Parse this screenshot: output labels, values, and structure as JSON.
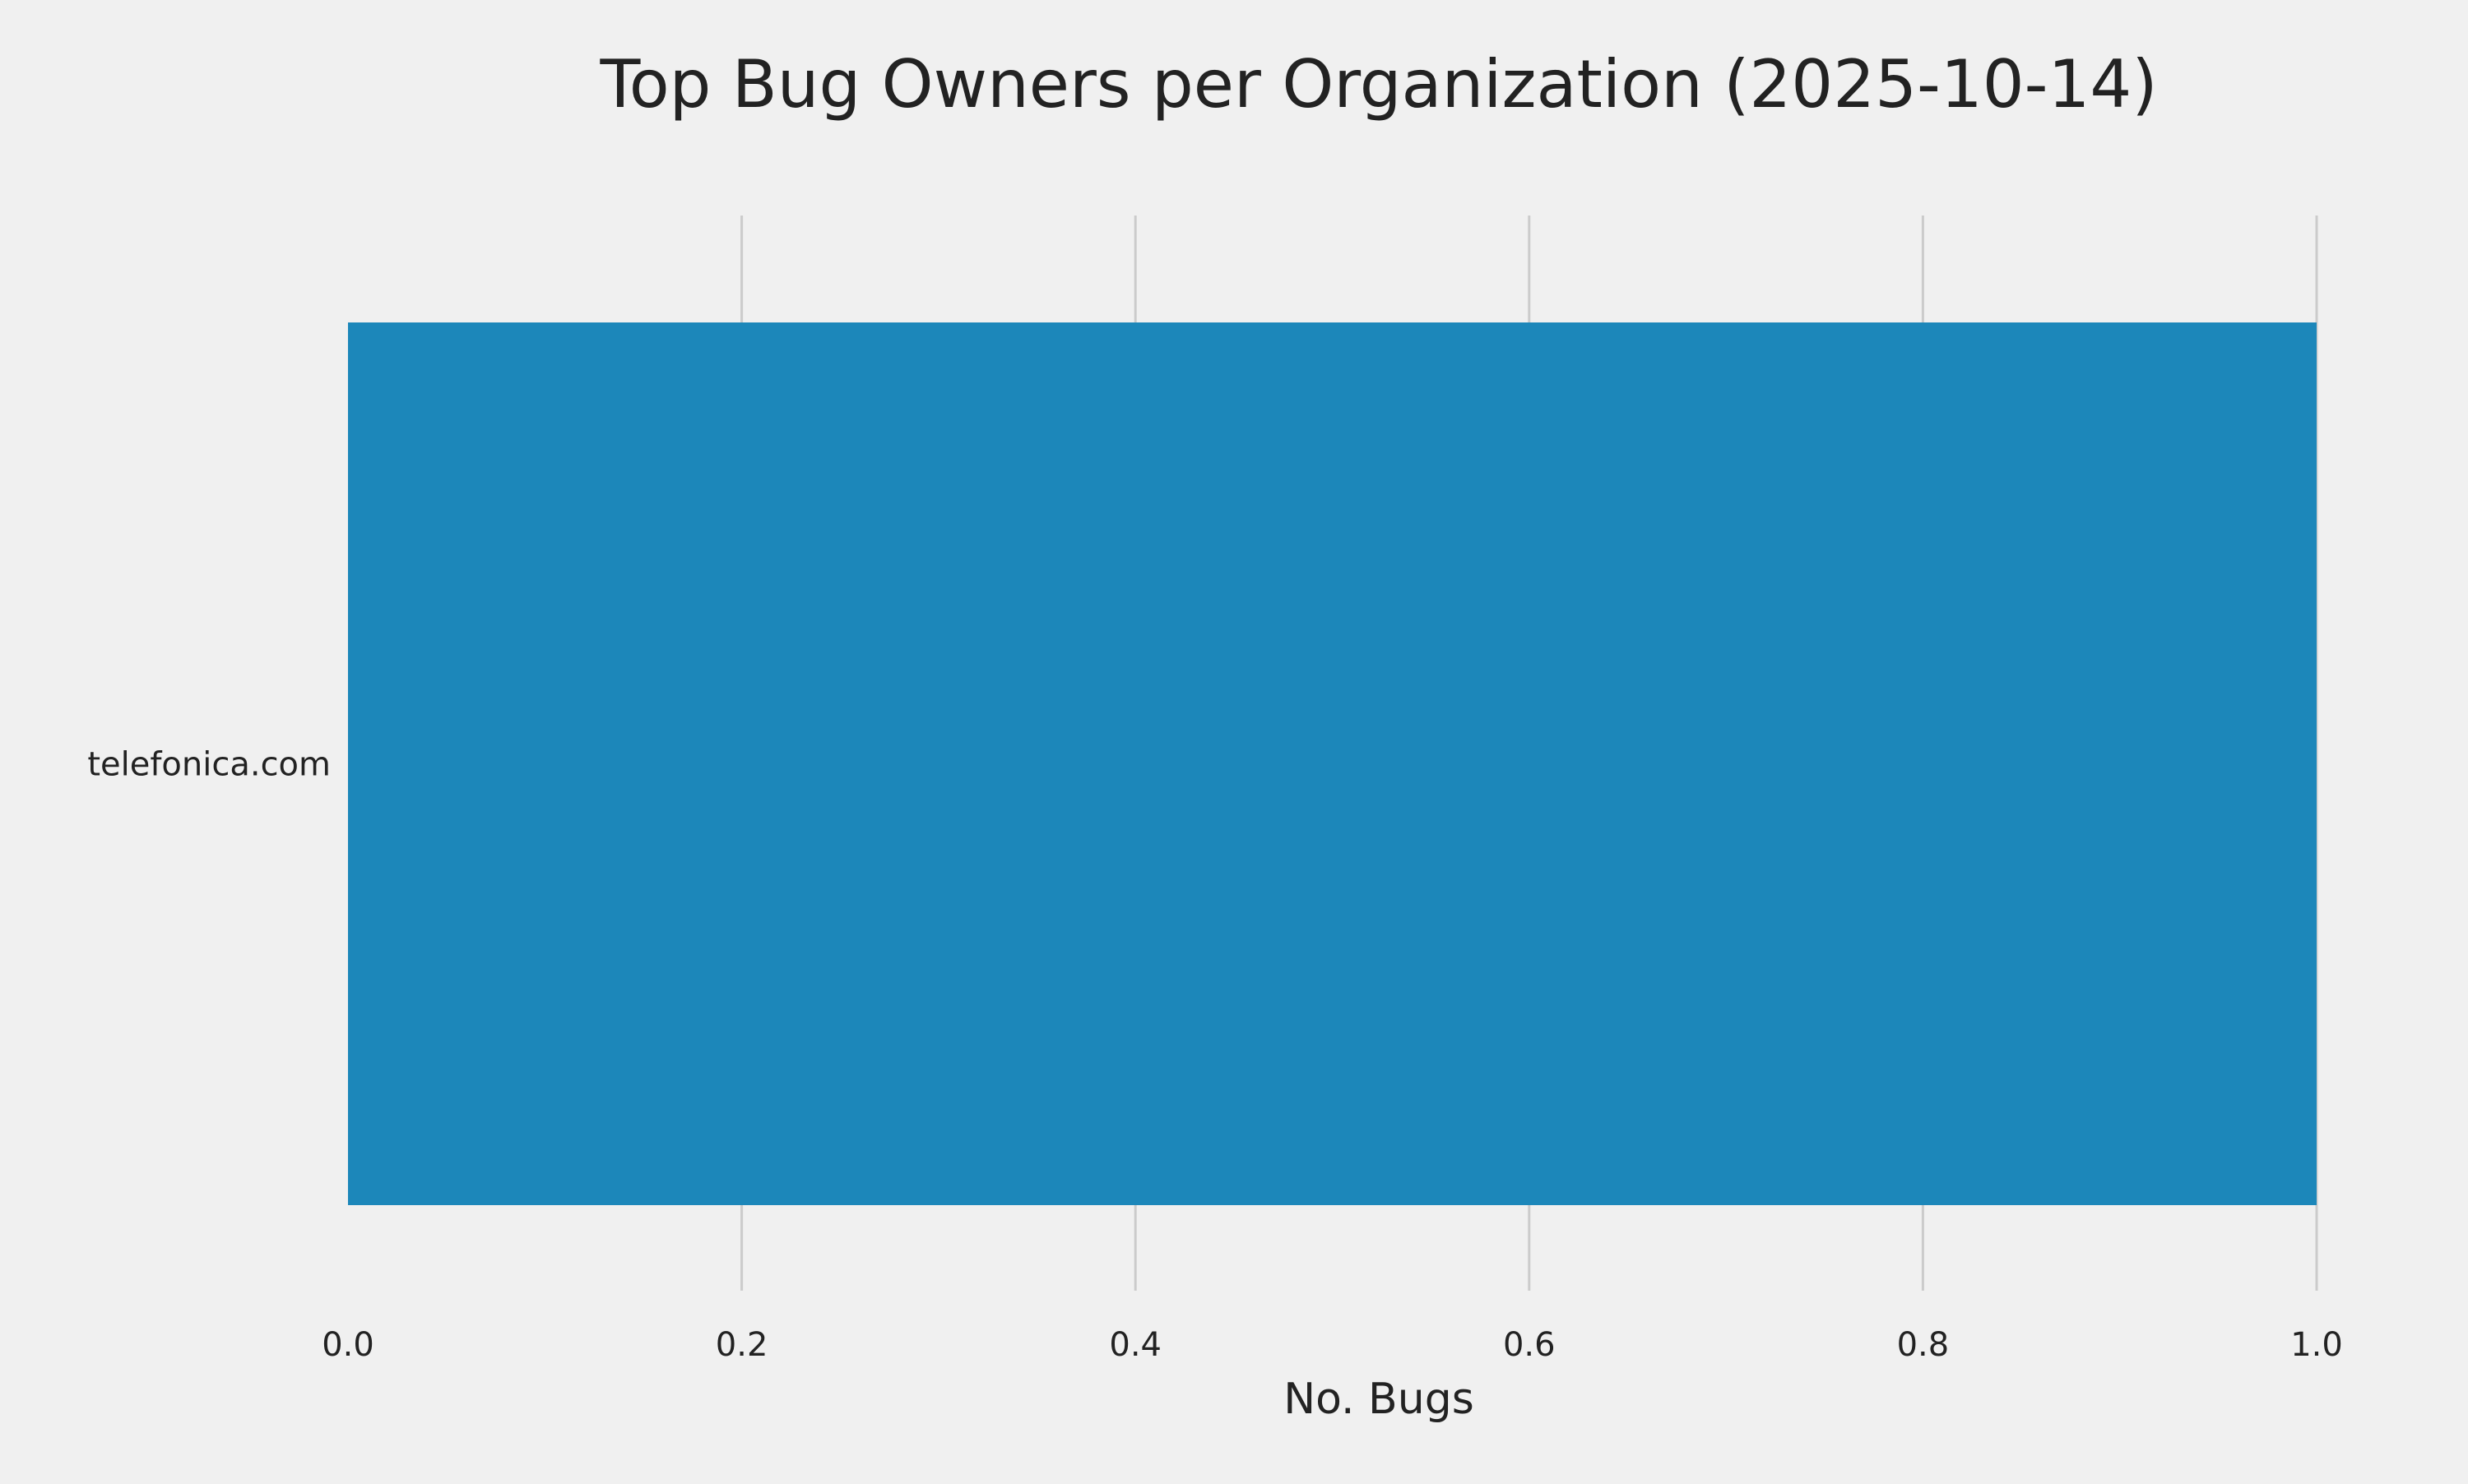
{
  "chart_data": {
    "type": "bar",
    "orientation": "horizontal",
    "title": "Top Bug Owners per Organization (2025-10-14)",
    "xlabel": "No. Bugs",
    "ylabel": "",
    "categories": [
      "telefonica.com"
    ],
    "values": [
      1
    ],
    "xlim": [
      0,
      1.0
    ],
    "xticks": [
      "0.0",
      "0.2",
      "0.4",
      "0.6",
      "0.8",
      "1.0"
    ],
    "grid": "vertical",
    "colors": {
      "bar": "#1c87ba",
      "background": "#f0f0f0",
      "grid": "#cbcbcb"
    }
  }
}
